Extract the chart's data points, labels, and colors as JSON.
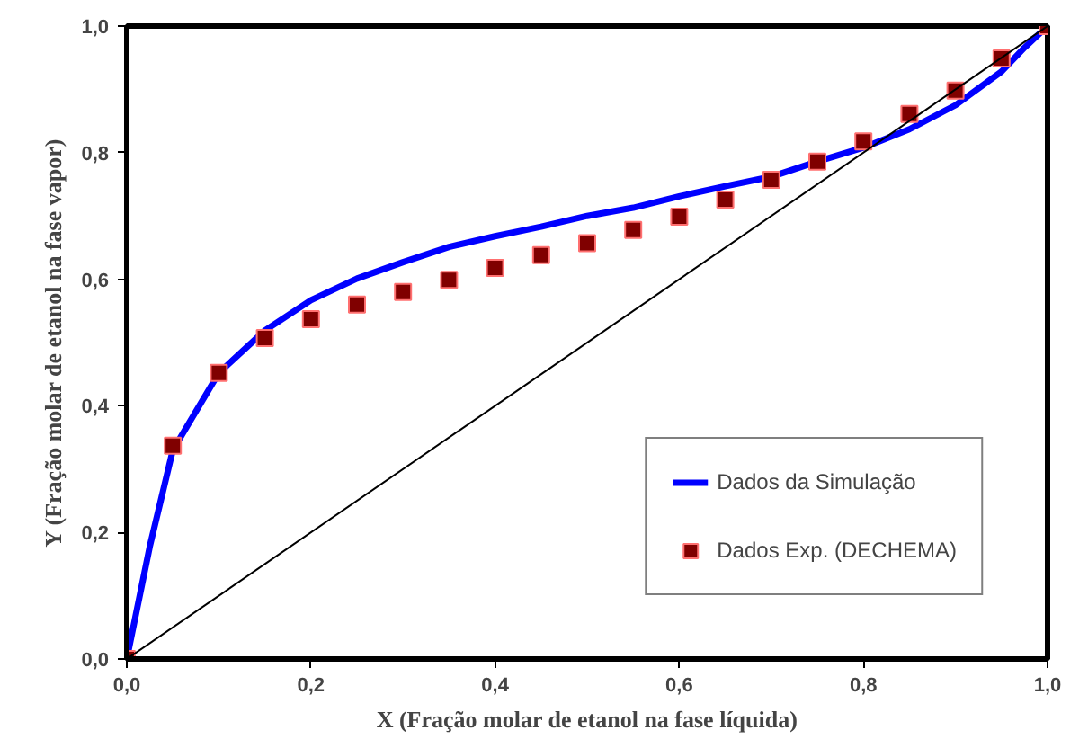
{
  "chart_data": {
    "type": "line",
    "xlabel": "X (Fração molar de etanol na fase líquida)",
    "ylabel": "Y (Fração molar de etanol na fase vapor)",
    "xlim": [
      0,
      1
    ],
    "ylim": [
      0,
      1
    ],
    "xticks": [
      {
        "value": 0,
        "label": "0,0"
      },
      {
        "value": 0.2,
        "label": "0,2"
      },
      {
        "value": 0.4,
        "label": "0,4"
      },
      {
        "value": 0.6,
        "label": "0,6"
      },
      {
        "value": 0.8,
        "label": "0,8"
      },
      {
        "value": 1,
        "label": "1,0"
      }
    ],
    "yticks": [
      {
        "value": 0,
        "label": "0,0"
      },
      {
        "value": 0.2,
        "label": "0,2"
      },
      {
        "value": 0.4,
        "label": "0,4"
      },
      {
        "value": 0.6,
        "label": "0,6"
      },
      {
        "value": 0.8,
        "label": "0,8"
      },
      {
        "value": 1,
        "label": "1,0"
      }
    ],
    "grid": false,
    "legend": "bottom right",
    "series": [
      {
        "name": "Dados da Simulação",
        "type": "line",
        "color": "#0000ff",
        "x": [
          0,
          0.025,
          0.05,
          0.1,
          0.15,
          0.2,
          0.25,
          0.3,
          0.35,
          0.4,
          0.45,
          0.5,
          0.55,
          0.6,
          0.65,
          0.7,
          0.75,
          0.8,
          0.85,
          0.9,
          0.95,
          0.975,
          1
        ],
        "values": [
          0,
          0.178,
          0.33,
          0.452,
          0.519,
          0.567,
          0.601,
          0.627,
          0.651,
          0.668,
          0.683,
          0.7,
          0.713,
          0.731,
          0.747,
          0.762,
          0.786,
          0.808,
          0.837,
          0.875,
          0.928,
          0.966,
          1
        ]
      },
      {
        "name": "Dados Exp. (DECHEMA)",
        "type": "scatter",
        "marker": "square",
        "color": "#800000",
        "x": [
          0,
          0.05,
          0.1,
          0.15,
          0.2,
          0.25,
          0.3,
          0.35,
          0.4,
          0.45,
          0.5,
          0.55,
          0.6,
          0.65,
          0.7,
          0.75,
          0.8,
          0.85,
          0.9,
          0.95,
          1
        ],
        "values": [
          0,
          0.337,
          0.452,
          0.507,
          0.537,
          0.56,
          0.58,
          0.599,
          0.618,
          0.638,
          0.657,
          0.678,
          0.699,
          0.726,
          0.757,
          0.786,
          0.818,
          0.861,
          0.898,
          0.949,
          1
        ]
      },
      {
        "color": "#000000",
        "x": [
          0,
          1
        ],
        "values": [
          0,
          1
        ]
      }
    ]
  }
}
